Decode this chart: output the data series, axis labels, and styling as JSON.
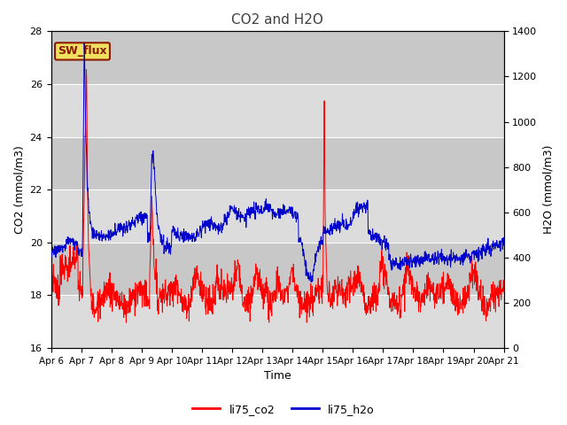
{
  "title": "CO2 and H2O",
  "xlabel": "Time",
  "ylabel_left": "CO2 (mmol/m3)",
  "ylabel_right": "H2O (mmol/m3)",
  "ylim_left": [
    16,
    28
  ],
  "ylim_right": [
    0,
    1400
  ],
  "yticks_left": [
    16,
    18,
    20,
    22,
    24,
    26,
    28
  ],
  "yticks_right": [
    0,
    200,
    400,
    600,
    800,
    1000,
    1200,
    1400
  ],
  "x_labels": [
    "Apr 6",
    "Apr 7",
    "Apr 8",
    "Apr 9",
    "Apr 10",
    "Apr 11",
    "Apr 12",
    "Apr 13",
    "Apr 14",
    "Apr 15",
    "Apr 16",
    "Apr 17",
    "Apr 18",
    "Apr 19",
    "Apr 20",
    "Apr 21"
  ],
  "sw_flux_label": "SW_flux",
  "legend_labels": [
    "li75_co2",
    "li75_h2o"
  ],
  "line_colors": [
    "#ff0000",
    "#0000cc"
  ],
  "band_colors": [
    "#dcdcdc",
    "#c8c8c8"
  ],
  "sw_flux_bg": "#f0e060",
  "sw_flux_border": "#8b1a00",
  "title_color": "#404040",
  "n_points": 1500
}
